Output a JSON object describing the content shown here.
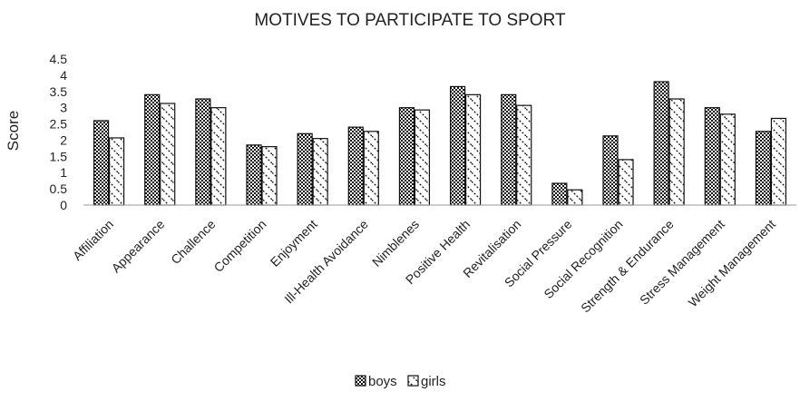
{
  "chart_data": {
    "type": "bar",
    "title": "MOTIVES TO PARTICIPATE TO SPORT",
    "xlabel": "",
    "ylabel": "Score",
    "ylim": [
      0,
      4.5
    ],
    "yticks": [
      "0",
      "0.5",
      "1",
      "1.5",
      "2",
      "2.5",
      "3",
      "3.5",
      "4",
      "4.5"
    ],
    "grid": false,
    "legend_position": "bottom",
    "categories": [
      "Affiliation",
      "Appearance",
      "Challence",
      "Competition",
      "Enjoyment",
      "Ill-Health Avoidance",
      "Nimblenes",
      "Positive Health",
      "Revitalisation",
      "Social Pressure",
      "Social Recognition",
      "Strength &  Endurance",
      "Stress Management",
      "Weight Management"
    ],
    "series": [
      {
        "name": "boys",
        "pattern": "checker",
        "values": [
          2.6,
          3.4,
          3.27,
          1.85,
          2.2,
          2.4,
          3.0,
          3.65,
          3.4,
          0.67,
          2.13,
          3.8,
          3.0,
          2.27
        ]
      },
      {
        "name": "girls",
        "pattern": "diagonal",
        "values": [
          2.07,
          3.13,
          3.0,
          1.8,
          2.05,
          2.27,
          2.93,
          3.4,
          3.07,
          0.47,
          1.4,
          3.27,
          2.8,
          2.67
        ]
      }
    ]
  }
}
